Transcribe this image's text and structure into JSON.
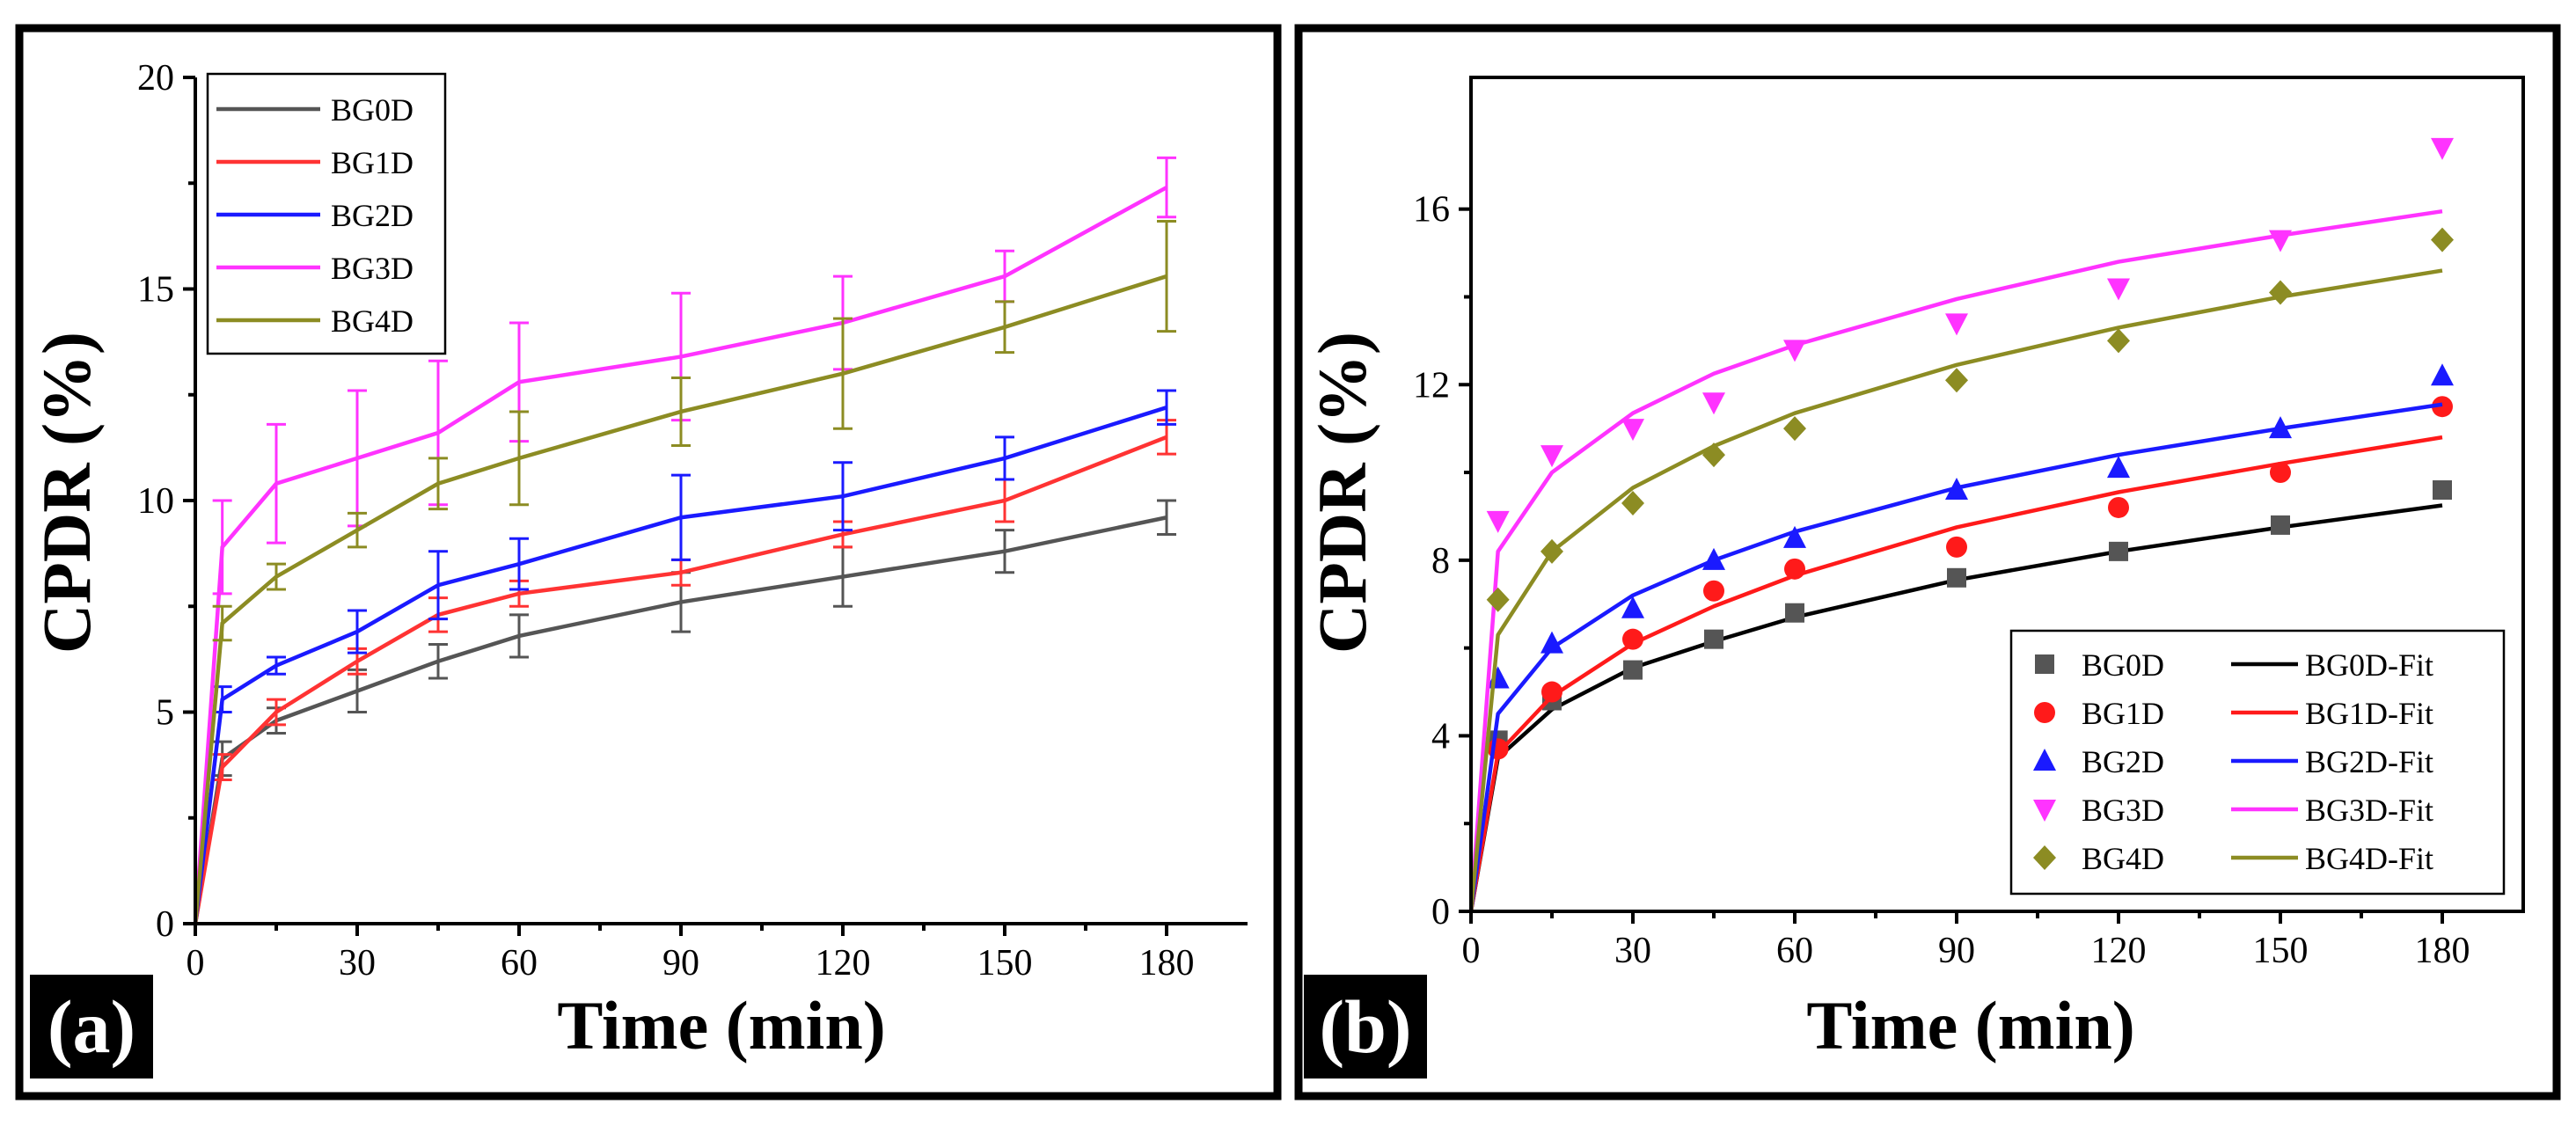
{
  "chart_data": [
    {
      "panel": "a",
      "panel_label": "(a)",
      "type": "line",
      "xlabel": "Time (min)",
      "ylabel": "CPDR (%)",
      "xlim": [
        0,
        195
      ],
      "ylim": [
        0,
        20
      ],
      "xticks": [
        0,
        30,
        60,
        90,
        120,
        150,
        180
      ],
      "xtick_labels": [
        "0",
        "30",
        "60",
        "90",
        "120",
        "150",
        "180"
      ],
      "yticks": [
        0,
        5,
        10,
        15,
        20
      ],
      "ytick_labels": [
        "0",
        "5",
        "10",
        "15",
        "20"
      ],
      "legend_position": "top-left",
      "x": [
        0,
        5,
        15,
        30,
        45,
        60,
        90,
        120,
        150,
        180
      ],
      "series": [
        {
          "name": "BG0D",
          "color": "#555555",
          "values": [
            0,
            3.9,
            4.8,
            5.5,
            6.2,
            6.8,
            7.6,
            8.2,
            8.8,
            9.6
          ],
          "error": [
            0,
            0.4,
            0.3,
            0.5,
            0.4,
            0.5,
            0.7,
            0.7,
            0.5,
            0.4
          ]
        },
        {
          "name": "BG1D",
          "color": "#ff3333",
          "values": [
            0,
            3.7,
            5.0,
            6.2,
            7.3,
            7.8,
            8.3,
            9.2,
            10.0,
            11.5
          ],
          "error": [
            0,
            0.3,
            0.3,
            0.3,
            0.4,
            0.3,
            0.3,
            0.3,
            0.5,
            0.4
          ]
        },
        {
          "name": "BG2D",
          "color": "#1a1aff",
          "values": [
            0,
            5.3,
            6.1,
            6.9,
            8.0,
            8.5,
            9.6,
            10.1,
            11.0,
            12.2
          ],
          "error": [
            0,
            0.3,
            0.2,
            0.5,
            0.8,
            0.6,
            1.0,
            0.8,
            0.5,
            0.4
          ]
        },
        {
          "name": "BG3D",
          "color": "#ff33ff",
          "values": [
            0,
            8.9,
            10.4,
            11.0,
            11.6,
            12.8,
            13.4,
            14.2,
            15.3,
            17.4
          ],
          "error": [
            0,
            1.1,
            1.4,
            1.6,
            1.7,
            1.4,
            1.5,
            1.1,
            0.6,
            0.7
          ]
        },
        {
          "name": "BG4D",
          "color": "#8c8c23",
          "values": [
            0,
            7.1,
            8.2,
            9.3,
            10.4,
            11.0,
            12.1,
            13.0,
            14.1,
            15.3
          ],
          "error": [
            0,
            0.4,
            0.3,
            0.4,
            0.6,
            1.1,
            0.8,
            1.3,
            0.6,
            1.3
          ]
        }
      ]
    },
    {
      "panel": "b",
      "panel_label": "(b)",
      "type": "scatter",
      "xlabel": "Time (min)",
      "ylabel": "CPDR (%)",
      "xlim": [
        0,
        195
      ],
      "ylim": [
        0,
        19
      ],
      "xticks": [
        0,
        30,
        60,
        90,
        120,
        150,
        180
      ],
      "xtick_labels": [
        "0",
        "30",
        "60",
        "90",
        "120",
        "150",
        "180"
      ],
      "yticks": [
        0,
        4,
        8,
        12,
        16
      ],
      "ytick_labels": [
        "0",
        "4",
        "8",
        "12",
        "16"
      ],
      "legend_position": "bottom-right",
      "x": [
        0,
        5,
        15,
        30,
        45,
        60,
        90,
        120,
        150,
        180
      ],
      "series": [
        {
          "name": "BG0D",
          "fit_name": "BG0D-Fit",
          "marker": "square",
          "color": "#555555",
          "line_color": "#000000",
          "values": [
            0,
            3.9,
            4.8,
            5.5,
            6.2,
            6.8,
            7.6,
            8.2,
            8.8,
            9.6
          ],
          "fit": [
            0,
            3.5,
            4.6,
            5.55,
            6.15,
            6.7,
            7.55,
            8.2,
            8.75,
            9.25
          ]
        },
        {
          "name": "BG1D",
          "fit_name": "BG1D-Fit",
          "marker": "circle",
          "color": "#ff1a1a",
          "line_color": "#ff1a1a",
          "values": [
            0,
            3.7,
            5.0,
            6.2,
            7.3,
            7.8,
            8.3,
            9.2,
            10.0,
            11.5
          ],
          "fit": [
            0,
            3.6,
            4.9,
            6.1,
            6.95,
            7.65,
            8.75,
            9.55,
            10.2,
            10.8
          ]
        },
        {
          "name": "BG2D",
          "fit_name": "BG2D-Fit",
          "marker": "triangle-up",
          "color": "#1a1aff",
          "line_color": "#1a1aff",
          "values": [
            0,
            5.3,
            6.1,
            6.9,
            8.0,
            8.5,
            9.6,
            10.1,
            11.0,
            12.2
          ],
          "fit": [
            0,
            4.5,
            6.0,
            7.2,
            8.0,
            8.65,
            9.65,
            10.4,
            11.0,
            11.55
          ]
        },
        {
          "name": "BG3D",
          "fit_name": "BG3D-Fit",
          "marker": "triangle-down",
          "color": "#ff33ff",
          "line_color": "#ff33ff",
          "values": [
            0,
            8.9,
            10.4,
            11.0,
            11.6,
            12.8,
            13.4,
            14.2,
            15.3,
            17.4
          ],
          "fit": [
            0,
            8.2,
            10.0,
            11.35,
            12.25,
            12.9,
            13.95,
            14.8,
            15.4,
            15.95
          ]
        },
        {
          "name": "BG4D",
          "fit_name": "BG4D-Fit",
          "marker": "diamond",
          "color": "#8c8c23",
          "line_color": "#8c8c23",
          "values": [
            0,
            7.1,
            8.2,
            9.3,
            10.4,
            11.0,
            12.1,
            13.0,
            14.1,
            15.3
          ],
          "fit": [
            0,
            6.3,
            8.2,
            9.65,
            10.6,
            11.35,
            12.45,
            13.3,
            14.0,
            14.6
          ]
        }
      ]
    }
  ]
}
